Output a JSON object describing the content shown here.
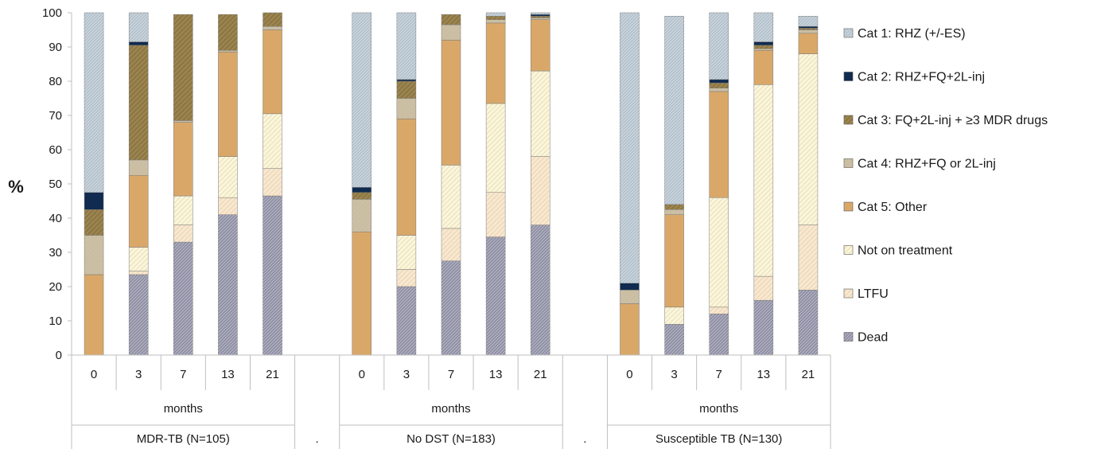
{
  "chart_data": {
    "type": "bar",
    "stacked": true,
    "ylabel": "%",
    "ylim": [
      0,
      100
    ],
    "yticks": [
      0,
      10,
      20,
      30,
      40,
      50,
      60,
      70,
      80,
      90,
      100
    ],
    "grid": false,
    "legend_position": "right",
    "groups": [
      {
        "label": "MDR-TB (N=105)",
        "sublabel": "months",
        "categories": [
          "0",
          "3",
          "7",
          "13",
          "21"
        ]
      },
      {
        "label": ".",
        "sublabel": "",
        "categories": []
      },
      {
        "label": "No DST (N=183)",
        "sublabel": "months",
        "categories": [
          "0",
          "3",
          "7",
          "13",
          "21"
        ]
      },
      {
        "label": ".",
        "sublabel": "",
        "categories": []
      },
      {
        "label": "Susceptible TB (N=130)",
        "sublabel": "months",
        "categories": [
          "0",
          "3",
          "7",
          "13",
          "21"
        ]
      }
    ],
    "series": [
      {
        "name": "Dead",
        "color": "#8e8ea4",
        "pattern": "dense",
        "values": [
          0,
          23.5,
          33,
          41,
          46.5,
          0,
          20,
          27.5,
          34.5,
          38,
          0,
          9,
          12,
          16,
          19
        ]
      },
      {
        "name": "LTFU",
        "color": "#f9e7cf",
        "pattern": "sparse",
        "values": [
          0,
          1,
          5,
          5,
          8,
          0,
          5,
          9.5,
          13,
          20,
          0,
          0,
          2,
          7,
          19
        ]
      },
      {
        "name": "Not on treatment",
        "color": "#fbf6da",
        "pattern": "sparse",
        "values": [
          0,
          7,
          8.5,
          12,
          16,
          0,
          10,
          18.5,
          26,
          25,
          0,
          5,
          32,
          56,
          50
        ]
      },
      {
        "name": "Cat 5: Other",
        "color": "#d9a869",
        "pattern": "none",
        "values": [
          23.5,
          21,
          21.5,
          30.5,
          24.5,
          36,
          34,
          36.5,
          23.5,
          15,
          15,
          27,
          31,
          10,
          6
        ]
      },
      {
        "name": "Cat 4: RHZ+FQ or 2L-inj",
        "color": "#cbbfa6",
        "pattern": "sparse",
        "values": [
          11.5,
          4.5,
          0.5,
          0.5,
          1,
          9.5,
          6,
          4.5,
          1,
          0.5,
          4,
          1.5,
          1,
          0.5,
          1
        ]
      },
      {
        "name": "Cat 3: FQ+2L-inj + ≥3 MDR drugs",
        "color": "#8f7843",
        "pattern": "sparse",
        "values": [
          7.5,
          33.5,
          31,
          10.5,
          4,
          2,
          5,
          3,
          1,
          0.5,
          0,
          1.5,
          1.5,
          1,
          0.5
        ]
      },
      {
        "name": "Cat 2: RHZ+FQ+2L-inj",
        "color": "#102b4f",
        "pattern": "none",
        "values": [
          5,
          1,
          0,
          0,
          0,
          1.5,
          0.5,
          0,
          0,
          0.5,
          2,
          0,
          1,
          1,
          0.5
        ]
      },
      {
        "name": "Cat 1: RHZ (+/-ES)",
        "color": "#b4c2cd",
        "pattern": "dense",
        "values": [
          52.5,
          8.5,
          0,
          0,
          0,
          51,
          19.5,
          0,
          1,
          0.5,
          79,
          55,
          19.5,
          8.5,
          3
        ]
      }
    ]
  }
}
